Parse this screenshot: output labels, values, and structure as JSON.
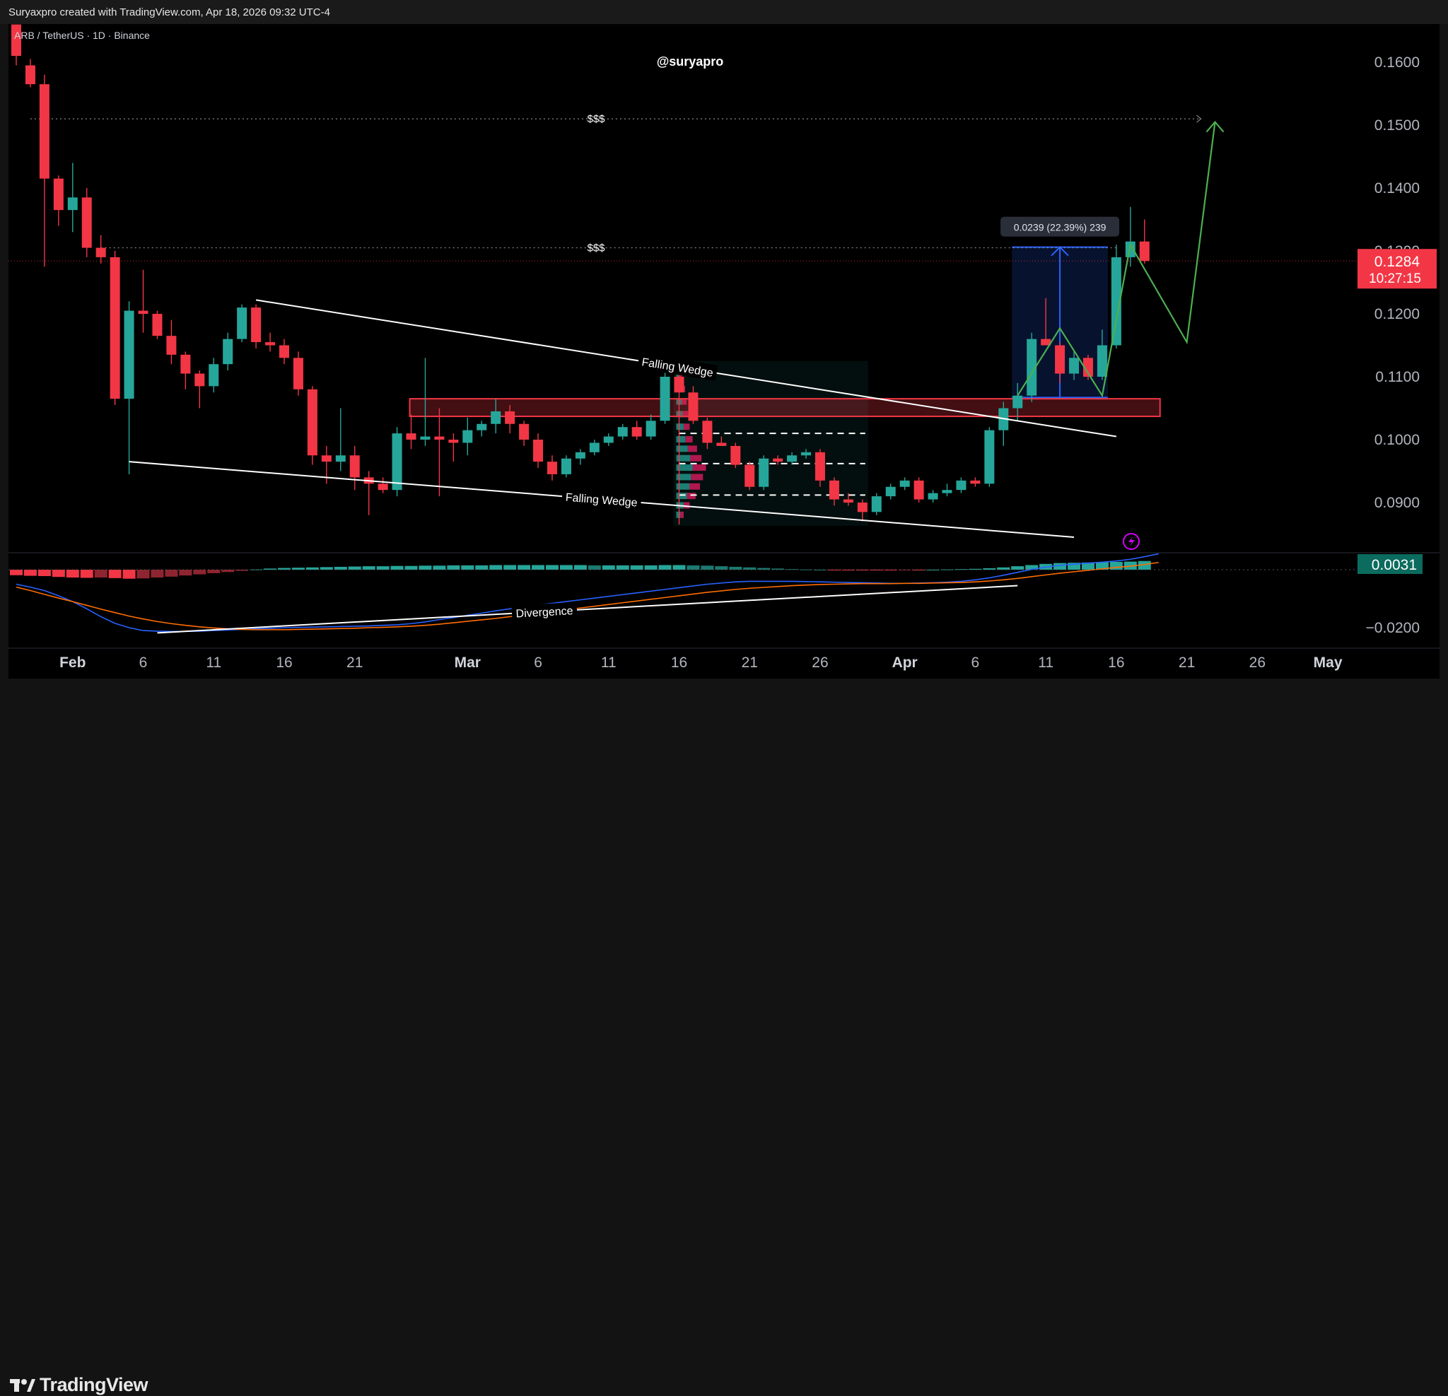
{
  "header": {
    "text": "Suryaxpro created with TradingView.com, Apr 18, 2026 09:32 UTC-4"
  },
  "symbol_label": "ARB / TetherUS · 1D · Binance",
  "watermark": "@suryapro",
  "footer": {
    "brand": "TradingView"
  },
  "colors": {
    "up": "#26a69a",
    "down": "#f23645",
    "background": "#000000",
    "zone": "#f23645",
    "measure": "#2962ff",
    "path": "#4caf50",
    "macd": "#2962ff",
    "signal": "#ff6d00"
  },
  "chart_data": {
    "type": "candlestick",
    "x_labels": [
      {
        "label": "Feb",
        "date": "2026-02-01",
        "bold": true
      },
      {
        "label": "6",
        "date": "2026-02-06"
      },
      {
        "label": "11",
        "date": "2026-02-11"
      },
      {
        "label": "16",
        "date": "2026-02-16"
      },
      {
        "label": "21",
        "date": "2026-02-21"
      },
      {
        "label": "Mar",
        "date": "2026-03-01",
        "bold": true
      },
      {
        "label": "6",
        "date": "2026-03-06"
      },
      {
        "label": "11",
        "date": "2026-03-11"
      },
      {
        "label": "16",
        "date": "2026-03-16"
      },
      {
        "label": "21",
        "date": "2026-03-21"
      },
      {
        "label": "26",
        "date": "2026-03-26"
      },
      {
        "label": "Apr",
        "date": "2026-04-01",
        "bold": true
      },
      {
        "label": "6",
        "date": "2026-04-06"
      },
      {
        "label": "11",
        "date": "2026-04-11"
      },
      {
        "label": "16",
        "date": "2026-04-16"
      },
      {
        "label": "21",
        "date": "2026-04-21"
      },
      {
        "label": "26",
        "date": "2026-04-26"
      },
      {
        "label": "May",
        "date": "2026-05-01",
        "bold": true
      }
    ],
    "x_range": [
      "2026-01-28",
      "2026-05-03"
    ],
    "y_ticks": [
      {
        "value": 0.16,
        "label": "0.1600"
      },
      {
        "value": 0.15,
        "label": "0.1500"
      },
      {
        "value": 0.14,
        "label": "0.1400"
      },
      {
        "value": 0.13,
        "label": "0.1300"
      },
      {
        "value": 0.12,
        "label": "0.1200"
      },
      {
        "value": 0.11,
        "label": "0.1100"
      },
      {
        "value": 0.1,
        "label": "0.1000"
      },
      {
        "value": 0.09,
        "label": "0.0900"
      }
    ],
    "ylim": [
      0.0828,
      0.1655
    ],
    "candles": [
      {
        "d": "2026-01-28",
        "o": 0.166,
        "h": 0.166,
        "l": 0.1595,
        "c": 0.161
      },
      {
        "d": "2026-01-29",
        "o": 0.1595,
        "h": 0.1605,
        "l": 0.156,
        "c": 0.1565
      },
      {
        "d": "2026-01-30",
        "o": 0.1565,
        "h": 0.158,
        "l": 0.1275,
        "c": 0.1415
      },
      {
        "d": "2026-01-31",
        "o": 0.1415,
        "h": 0.142,
        "l": 0.134,
        "c": 0.1365
      },
      {
        "d": "2026-02-01",
        "o": 0.1365,
        "h": 0.144,
        "l": 0.133,
        "c": 0.1385
      },
      {
        "d": "2026-02-02",
        "o": 0.1385,
        "h": 0.14,
        "l": 0.129,
        "c": 0.1305
      },
      {
        "d": "2026-02-03",
        "o": 0.1305,
        "h": 0.1325,
        "l": 0.128,
        "c": 0.129
      },
      {
        "d": "2026-02-04",
        "o": 0.129,
        "h": 0.13,
        "l": 0.1055,
        "c": 0.1065
      },
      {
        "d": "2026-02-05",
        "o": 0.1065,
        "h": 0.122,
        "l": 0.0945,
        "c": 0.1205
      },
      {
        "d": "2026-02-06",
        "o": 0.1205,
        "h": 0.127,
        "l": 0.117,
        "c": 0.12
      },
      {
        "d": "2026-02-07",
        "o": 0.12,
        "h": 0.1205,
        "l": 0.116,
        "c": 0.1165
      },
      {
        "d": "2026-02-08",
        "o": 0.1165,
        "h": 0.119,
        "l": 0.112,
        "c": 0.1135
      },
      {
        "d": "2026-02-09",
        "o": 0.1135,
        "h": 0.114,
        "l": 0.108,
        "c": 0.1105
      },
      {
        "d": "2026-02-10",
        "o": 0.1105,
        "h": 0.111,
        "l": 0.105,
        "c": 0.1085
      },
      {
        "d": "2026-02-11",
        "o": 0.1085,
        "h": 0.113,
        "l": 0.1075,
        "c": 0.112
      },
      {
        "d": "2026-02-12",
        "o": 0.112,
        "h": 0.117,
        "l": 0.111,
        "c": 0.116
      },
      {
        "d": "2026-02-13",
        "o": 0.116,
        "h": 0.1215,
        "l": 0.1155,
        "c": 0.121
      },
      {
        "d": "2026-02-14",
        "o": 0.121,
        "h": 0.1215,
        "l": 0.1145,
        "c": 0.1155
      },
      {
        "d": "2026-02-15",
        "o": 0.1155,
        "h": 0.117,
        "l": 0.114,
        "c": 0.115
      },
      {
        "d": "2026-02-16",
        "o": 0.115,
        "h": 0.116,
        "l": 0.112,
        "c": 0.113
      },
      {
        "d": "2026-02-17",
        "o": 0.113,
        "h": 0.114,
        "l": 0.107,
        "c": 0.108
      },
      {
        "d": "2026-02-18",
        "o": 0.108,
        "h": 0.1085,
        "l": 0.096,
        "c": 0.0975
      },
      {
        "d": "2026-02-19",
        "o": 0.0975,
        "h": 0.099,
        "l": 0.093,
        "c": 0.0965
      },
      {
        "d": "2026-02-20",
        "o": 0.0965,
        "h": 0.105,
        "l": 0.095,
        "c": 0.0975
      },
      {
        "d": "2026-02-21",
        "o": 0.0975,
        "h": 0.099,
        "l": 0.092,
        "c": 0.094
      },
      {
        "d": "2026-02-22",
        "o": 0.094,
        "h": 0.095,
        "l": 0.088,
        "c": 0.093
      },
      {
        "d": "2026-02-23",
        "o": 0.093,
        "h": 0.094,
        "l": 0.0915,
        "c": 0.092
      },
      {
        "d": "2026-02-24",
        "o": 0.092,
        "h": 0.102,
        "l": 0.091,
        "c": 0.101
      },
      {
        "d": "2026-02-25",
        "o": 0.101,
        "h": 0.104,
        "l": 0.0985,
        "c": 0.1
      },
      {
        "d": "2026-02-26",
        "o": 0.1,
        "h": 0.113,
        "l": 0.099,
        "c": 0.1005
      },
      {
        "d": "2026-02-27",
        "o": 0.1005,
        "h": 0.105,
        "l": 0.091,
        "c": 0.1
      },
      {
        "d": "2026-02-28",
        "o": 0.1,
        "h": 0.101,
        "l": 0.0965,
        "c": 0.0995
      },
      {
        "d": "2026-03-01",
        "o": 0.0995,
        "h": 0.1035,
        "l": 0.0975,
        "c": 0.1015
      },
      {
        "d": "2026-03-02",
        "o": 0.1015,
        "h": 0.103,
        "l": 0.1005,
        "c": 0.1025
      },
      {
        "d": "2026-03-03",
        "o": 0.1025,
        "h": 0.1065,
        "l": 0.101,
        "c": 0.1045
      },
      {
        "d": "2026-03-04",
        "o": 0.1045,
        "h": 0.1055,
        "l": 0.101,
        "c": 0.1025
      },
      {
        "d": "2026-03-05",
        "o": 0.1025,
        "h": 0.103,
        "l": 0.099,
        "c": 0.1
      },
      {
        "d": "2026-03-06",
        "o": 0.1,
        "h": 0.101,
        "l": 0.0955,
        "c": 0.0965
      },
      {
        "d": "2026-03-07",
        "o": 0.0965,
        "h": 0.0975,
        "l": 0.0935,
        "c": 0.0945
      },
      {
        "d": "2026-03-08",
        "o": 0.0945,
        "h": 0.0975,
        "l": 0.094,
        "c": 0.097
      },
      {
        "d": "2026-03-09",
        "o": 0.097,
        "h": 0.0985,
        "l": 0.096,
        "c": 0.098
      },
      {
        "d": "2026-03-10",
        "o": 0.098,
        "h": 0.1,
        "l": 0.0975,
        "c": 0.0995
      },
      {
        "d": "2026-03-11",
        "o": 0.0995,
        "h": 0.101,
        "l": 0.099,
        "c": 0.1005
      },
      {
        "d": "2026-03-12",
        "o": 0.1005,
        "h": 0.1025,
        "l": 0.1,
        "c": 0.102
      },
      {
        "d": "2026-03-13",
        "o": 0.102,
        "h": 0.103,
        "l": 0.1,
        "c": 0.1005
      },
      {
        "d": "2026-03-14",
        "o": 0.1005,
        "h": 0.104,
        "l": 0.1,
        "c": 0.103
      },
      {
        "d": "2026-03-15",
        "o": 0.103,
        "h": 0.111,
        "l": 0.1025,
        "c": 0.11
      },
      {
        "d": "2026-03-16",
        "o": 0.11,
        "h": 0.1105,
        "l": 0.0865,
        "c": 0.1075
      },
      {
        "d": "2026-03-17",
        "o": 0.1075,
        "h": 0.1085,
        "l": 0.1025,
        "c": 0.103
      },
      {
        "d": "2026-03-18",
        "o": 0.103,
        "h": 0.1035,
        "l": 0.0985,
        "c": 0.0995
      },
      {
        "d": "2026-03-19",
        "o": 0.0995,
        "h": 0.1005,
        "l": 0.099,
        "c": 0.099
      },
      {
        "d": "2026-03-20",
        "o": 0.099,
        "h": 0.0995,
        "l": 0.0955,
        "c": 0.096
      },
      {
        "d": "2026-03-21",
        "o": 0.096,
        "h": 0.0965,
        "l": 0.092,
        "c": 0.0925
      },
      {
        "d": "2026-03-22",
        "o": 0.0925,
        "h": 0.0975,
        "l": 0.092,
        "c": 0.097
      },
      {
        "d": "2026-03-23",
        "o": 0.097,
        "h": 0.0975,
        "l": 0.096,
        "c": 0.0965
      },
      {
        "d": "2026-03-24",
        "o": 0.0965,
        "h": 0.098,
        "l": 0.096,
        "c": 0.0975
      },
      {
        "d": "2026-03-25",
        "o": 0.0975,
        "h": 0.0985,
        "l": 0.097,
        "c": 0.098
      },
      {
        "d": "2026-03-26",
        "o": 0.098,
        "h": 0.0985,
        "l": 0.0925,
        "c": 0.0935
      },
      {
        "d": "2026-03-27",
        "o": 0.0935,
        "h": 0.094,
        "l": 0.0895,
        "c": 0.0905
      },
      {
        "d": "2026-03-28",
        "o": 0.0905,
        "h": 0.0915,
        "l": 0.0895,
        "c": 0.09
      },
      {
        "d": "2026-03-29",
        "o": 0.09,
        "h": 0.0905,
        "l": 0.087,
        "c": 0.0885
      },
      {
        "d": "2026-03-30",
        "o": 0.0885,
        "h": 0.0915,
        "l": 0.088,
        "c": 0.091
      },
      {
        "d": "2026-03-31",
        "o": 0.091,
        "h": 0.093,
        "l": 0.0905,
        "c": 0.0925
      },
      {
        "d": "2026-04-01",
        "o": 0.0925,
        "h": 0.094,
        "l": 0.092,
        "c": 0.0935
      },
      {
        "d": "2026-04-02",
        "o": 0.0935,
        "h": 0.094,
        "l": 0.09,
        "c": 0.0905
      },
      {
        "d": "2026-04-03",
        "o": 0.0905,
        "h": 0.092,
        "l": 0.09,
        "c": 0.0915
      },
      {
        "d": "2026-04-04",
        "o": 0.0915,
        "h": 0.093,
        "l": 0.091,
        "c": 0.092
      },
      {
        "d": "2026-04-05",
        "o": 0.092,
        "h": 0.094,
        "l": 0.0915,
        "c": 0.0935
      },
      {
        "d": "2026-04-06",
        "o": 0.0935,
        "h": 0.094,
        "l": 0.0925,
        "c": 0.093
      },
      {
        "d": "2026-04-07",
        "o": 0.093,
        "h": 0.102,
        "l": 0.0925,
        "c": 0.1015
      },
      {
        "d": "2026-04-08",
        "o": 0.1015,
        "h": 0.106,
        "l": 0.099,
        "c": 0.105
      },
      {
        "d": "2026-04-09",
        "o": 0.105,
        "h": 0.109,
        "l": 0.103,
        "c": 0.107
      },
      {
        "d": "2026-04-10",
        "o": 0.107,
        "h": 0.117,
        "l": 0.106,
        "c": 0.116
      },
      {
        "d": "2026-04-11",
        "o": 0.116,
        "h": 0.1225,
        "l": 0.115,
        "c": 0.115
      },
      {
        "d": "2026-04-12",
        "o": 0.115,
        "h": 0.1155,
        "l": 0.109,
        "c": 0.1105
      },
      {
        "d": "2026-04-13",
        "o": 0.1105,
        "h": 0.114,
        "l": 0.1095,
        "c": 0.113
      },
      {
        "d": "2026-04-14",
        "o": 0.113,
        "h": 0.1135,
        "l": 0.1095,
        "c": 0.11
      },
      {
        "d": "2026-04-15",
        "o": 0.11,
        "h": 0.1175,
        "l": 0.1095,
        "c": 0.115
      },
      {
        "d": "2026-04-16",
        "o": 0.115,
        "h": 0.131,
        "l": 0.1145,
        "c": 0.129
      },
      {
        "d": "2026-04-17",
        "o": 0.129,
        "h": 0.137,
        "l": 0.1275,
        "c": 0.1315
      },
      {
        "d": "2026-04-18",
        "o": 0.1315,
        "h": 0.135,
        "l": 0.128,
        "c": 0.1284
      }
    ],
    "current_price": {
      "label": "0.1284",
      "countdown": "10:27:15",
      "value": 0.1284
    },
    "liquidity_levels": [
      {
        "label": "$$$",
        "value": 0.151,
        "from": "2026-01-29",
        "to": "2026-04-22"
      },
      {
        "label": "$$$",
        "value": 0.1305,
        "from": "2026-02-03",
        "to": "2026-04-16"
      }
    ],
    "resistance_zone": {
      "from": "2026-02-25",
      "to": "2026-04-19",
      "top": 0.1065,
      "bottom": 0.1037
    },
    "falling_wedge_upper": {
      "label": "Falling Wedge",
      "from": {
        "d": "2026-02-14",
        "v": 0.1222
      },
      "to": {
        "d": "2026-04-16",
        "v": 0.1005
      }
    },
    "falling_wedge_lower": {
      "label": "Falling Wedge",
      "from": {
        "d": "2026-02-05",
        "v": 0.0965
      },
      "to": {
        "d": "2026-04-13",
        "v": 0.0845
      }
    },
    "range_box": {
      "from": "2026-03-16",
      "to": "2026-03-29",
      "top": 0.1125,
      "bottom": 0.0863
    },
    "range_levels": [
      0.101,
      0.0962,
      0.0912
    ],
    "volume_profile": {
      "from": "2026-03-16",
      "bins": [
        {
          "v": 0.11,
          "w": 0.2
        },
        {
          "v": 0.108,
          "w": 0.3
        },
        {
          "v": 0.106,
          "w": 0.35
        },
        {
          "v": 0.104,
          "w": 0.4
        },
        {
          "v": 0.102,
          "w": 0.45
        },
        {
          "v": 0.1,
          "w": 0.55
        },
        {
          "v": 0.0985,
          "w": 0.7
        },
        {
          "v": 0.097,
          "w": 0.85
        },
        {
          "v": 0.0955,
          "w": 1.0
        },
        {
          "v": 0.094,
          "w": 0.9
        },
        {
          "v": 0.0925,
          "w": 0.8
        },
        {
          "v": 0.091,
          "w": 0.65
        },
        {
          "v": 0.0895,
          "w": 0.45
        },
        {
          "v": 0.088,
          "w": 0.25
        }
      ]
    },
    "measure": {
      "label": "0.0239 (22.39%) 239",
      "from": "2026-04-09",
      "to": "2026-04-15",
      "low": 0.1067,
      "high": 0.1306
    },
    "projected_path": [
      {
        "d": "2026-04-09",
        "v": 0.107
      },
      {
        "d": "2026-04-12",
        "v": 0.1177
      },
      {
        "d": "2026-04-15",
        "v": 0.107
      },
      {
        "d": "2026-04-17",
        "v": 0.131
      },
      {
        "d": "2026-04-21",
        "v": 0.1155
      },
      {
        "d": "2026-04-23",
        "v": 0.1505
      }
    ],
    "macd": {
      "current_label": "0.0031",
      "tick": {
        "value": -0.02,
        "label": "−0.0200"
      },
      "ylim": [
        -0.0265,
        0.0125
      ],
      "hist_start": "2026-01-28",
      "hist": [
        -0.0019,
        -0.0021,
        -0.0022,
        -0.0025,
        -0.0027,
        -0.0028,
        -0.0027,
        -0.0029,
        -0.0031,
        -0.003,
        -0.0027,
        -0.0024,
        -0.002,
        -0.0016,
        -0.0012,
        -0.0008,
        -0.0004,
        0.0001,
        0.0004,
        0.0006,
        0.0007,
        0.0008,
        0.0009,
        0.001,
        0.0011,
        0.0012,
        0.0012,
        0.0013,
        0.0013,
        0.0014,
        0.0014,
        0.0015,
        0.0015,
        0.0015,
        0.0016,
        0.0016,
        0.0016,
        0.0016,
        0.0016,
        0.0016,
        0.0016,
        0.0015,
        0.0015,
        0.0015,
        0.0015,
        0.0015,
        0.0016,
        0.0016,
        0.0015,
        0.0014,
        0.0012,
        0.001,
        0.0008,
        0.0006,
        0.0004,
        0.0002,
        0.0001,
        0.0,
        -0.0001,
        -0.0001,
        -0.0002,
        -0.0002,
        -0.0002,
        -0.0001,
        -0.0001,
        0.0,
        0.0001,
        0.0002,
        0.0003,
        0.0005,
        0.0008,
        0.0012,
        0.0016,
        0.002,
        0.0023,
        0.0024,
        0.0025,
        0.0026,
        0.0027,
        0.0028,
        0.003
      ],
      "macd_line_start": "2026-01-28",
      "macd_line": [
        -0.005,
        -0.006,
        -0.0072,
        -0.009,
        -0.011,
        -0.0135,
        -0.0162,
        -0.0185,
        -0.02,
        -0.021,
        -0.0212,
        -0.0213,
        -0.0213,
        -0.0212,
        -0.021,
        -0.0208,
        -0.0206,
        -0.0204,
        -0.0202,
        -0.02,
        -0.0199,
        -0.0198,
        -0.0197,
        -0.0196,
        -0.0195,
        -0.0194,
        -0.0192,
        -0.019,
        -0.0186,
        -0.018,
        -0.0172,
        -0.0165,
        -0.0157,
        -0.015,
        -0.0142,
        -0.0135,
        -0.0128,
        -0.0122,
        -0.0116,
        -0.011,
        -0.0104,
        -0.0098,
        -0.0092,
        -0.0086,
        -0.008,
        -0.0074,
        -0.0068,
        -0.0062,
        -0.0056,
        -0.005,
        -0.0046,
        -0.0042,
        -0.004,
        -0.004,
        -0.004,
        -0.004,
        -0.0041,
        -0.0042,
        -0.0043,
        -0.0044,
        -0.0045,
        -0.0046,
        -0.0047,
        -0.0047,
        -0.0046,
        -0.0045,
        -0.0043,
        -0.004,
        -0.0035,
        -0.0028,
        -0.0019,
        -0.0009,
        0.0001,
        0.0009,
        0.0015,
        0.0019,
        0.0023,
        0.0026,
        0.003,
        0.0036,
        0.0045,
        0.0055
      ],
      "signal_line": [
        -0.006,
        -0.0072,
        -0.0085,
        -0.0098,
        -0.011,
        -0.0123,
        -0.0136,
        -0.0148,
        -0.016,
        -0.017,
        -0.0179,
        -0.0186,
        -0.0192,
        -0.0197,
        -0.0201,
        -0.0204,
        -0.0206,
        -0.0207,
        -0.0207,
        -0.0207,
        -0.0206,
        -0.0205,
        -0.0204,
        -0.0203,
        -0.0202,
        -0.02,
        -0.0199,
        -0.0197,
        -0.0195,
        -0.0192,
        -0.0188,
        -0.0183,
        -0.0178,
        -0.0173,
        -0.0168,
        -0.0162,
        -0.0156,
        -0.015,
        -0.0144,
        -0.0138,
        -0.0132,
        -0.0126,
        -0.012,
        -0.0114,
        -0.0108,
        -0.0102,
        -0.0096,
        -0.009,
        -0.0084,
        -0.0078,
        -0.0073,
        -0.0068,
        -0.0064,
        -0.0061,
        -0.0058,
        -0.0055,
        -0.0053,
        -0.0051,
        -0.005,
        -0.0049,
        -0.0048,
        -0.0048,
        -0.0048,
        -0.0047,
        -0.0047,
        -0.0046,
        -0.0045,
        -0.0044,
        -0.0042,
        -0.0039,
        -0.0035,
        -0.003,
        -0.0024,
        -0.0018,
        -0.0012,
        -0.0007,
        -0.0002,
        0.0003,
        0.0008,
        0.0012,
        0.0018,
        0.0025
      ],
      "divergence": {
        "label": "Divergence",
        "from": {
          "d": "2026-02-07",
          "v": -0.0218
        },
        "to": {
          "d": "2026-04-09",
          "v": -0.0055
        }
      }
    }
  }
}
